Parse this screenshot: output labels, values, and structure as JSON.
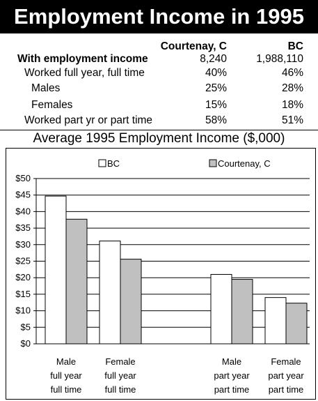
{
  "header": {
    "title": "Employment Income in 1995"
  },
  "table": {
    "col_court": "Courtenay, C",
    "col_bc": "BC",
    "rows": [
      {
        "label": "With employment income",
        "court": "8,240",
        "bc": "1,988,110"
      },
      {
        "label": "Worked full year, full time",
        "court": "40%",
        "bc": "46%"
      },
      {
        "label": "Males",
        "court": "25%",
        "bc": "28%"
      },
      {
        "label": "Females",
        "court": "15%",
        "bc": "18%"
      },
      {
        "label": "Worked part yr or part time",
        "court": "58%",
        "bc": "51%"
      }
    ]
  },
  "chart_data": {
    "type": "bar",
    "title": "Average 1995 Employment Income ($,000)",
    "categories": [
      [
        "Male",
        "full year",
        "full time"
      ],
      [
        "Female",
        "full year",
        "full time"
      ],
      [
        "Male",
        "part year",
        "part time"
      ],
      [
        "Female",
        "part year",
        "part time"
      ]
    ],
    "series": [
      {
        "name": "BC",
        "color": "#ffffff",
        "values": [
          44.7,
          31.1,
          21.0,
          14.0
        ]
      },
      {
        "name": "Courtenay, C",
        "color": "#c0c0c0",
        "values": [
          37.7,
          25.6,
          19.5,
          12.3
        ]
      }
    ],
    "ylim": [
      0,
      50
    ],
    "yticks": [
      0,
      5,
      10,
      15,
      20,
      25,
      30,
      35,
      40,
      45,
      50
    ],
    "ytick_labels": [
      "$0",
      "$5",
      "$10",
      "$15",
      "$20",
      "$25",
      "$30",
      "$35",
      "$40",
      "$45",
      "$50"
    ],
    "grid": true,
    "legend": "top"
  }
}
